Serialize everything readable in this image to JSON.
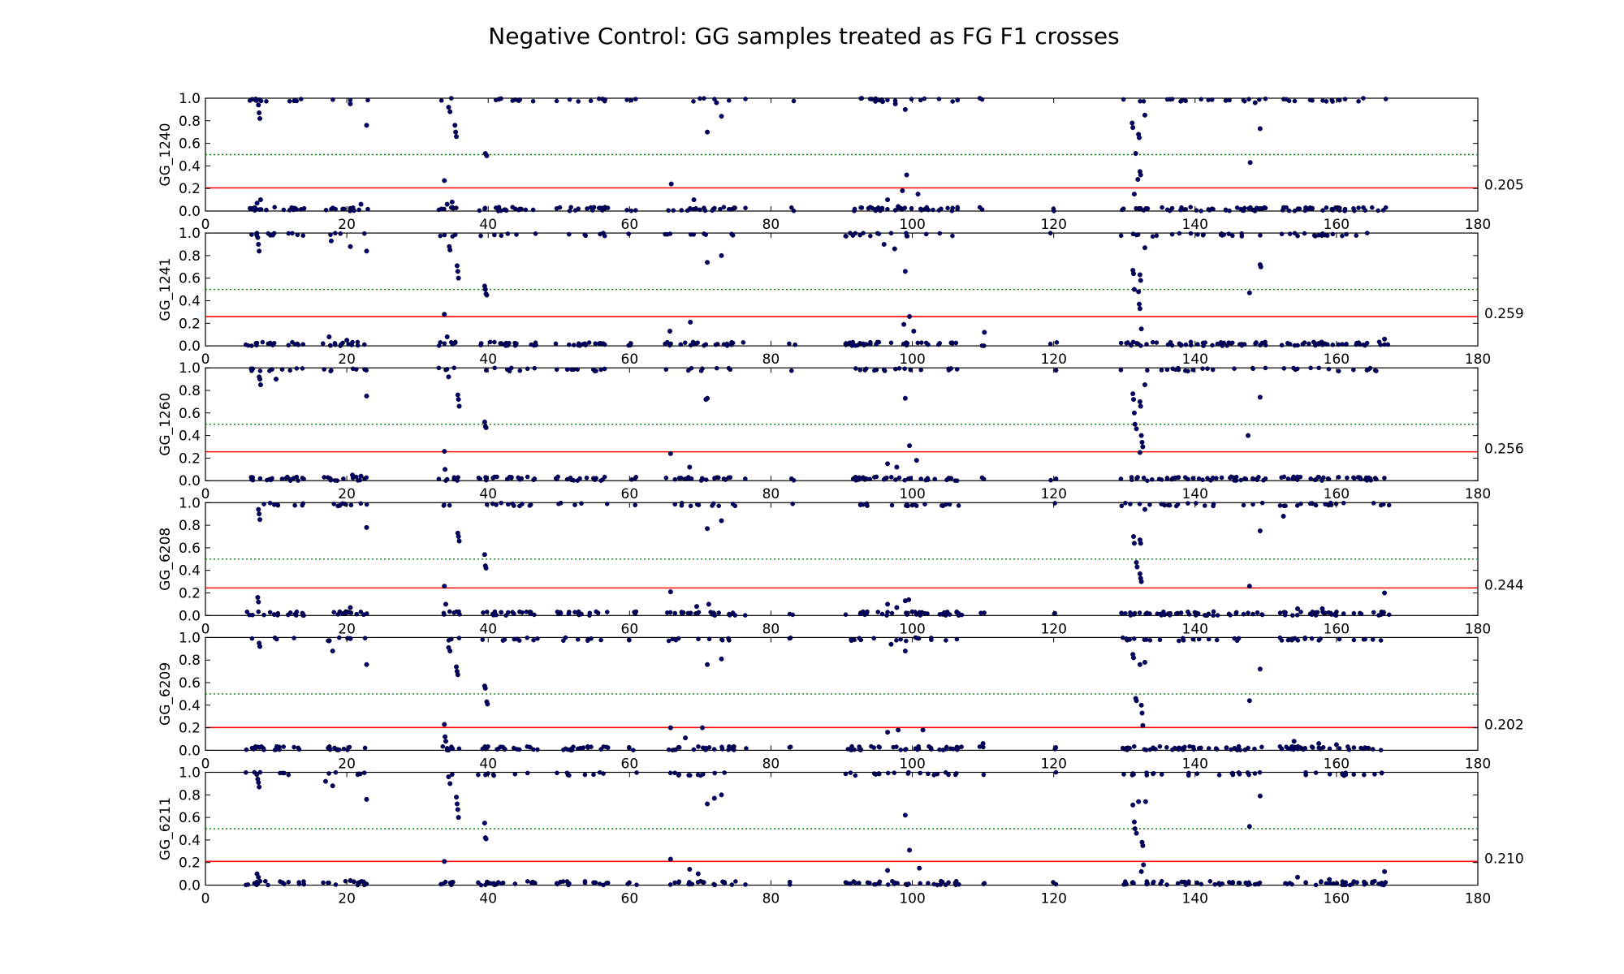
{
  "chart_data": {
    "type": "scatter",
    "title": "Negative Control: GG samples treated as FG F1 crosses",
    "xlim": [
      0,
      180
    ],
    "ylim": [
      0,
      1.0
    ],
    "xticks": [
      "0",
      "20",
      "40",
      "60",
      "80",
      "100",
      "120",
      "140",
      "160",
      "180"
    ],
    "yticks": [
      "0.0",
      "0.2",
      "0.4",
      "0.6",
      "0.8",
      "1.0"
    ],
    "reference_line": 0.5,
    "colors": {
      "points": "#000066",
      "threshold": "#ff0000",
      "reference": "#008000"
    },
    "panels": [
      {
        "ylabel": "GG_1240",
        "threshold": 0.205,
        "threshold_label": "0.205",
        "points": [
          [
            7.2,
            0.98
          ],
          [
            7.5,
            0.94
          ],
          [
            7.6,
            0.87
          ],
          [
            7.7,
            0.82
          ],
          [
            7.3,
            0.07
          ],
          [
            7.8,
            0.1
          ],
          [
            33.8,
            0.27
          ],
          [
            34.4,
            0.92
          ],
          [
            34.6,
            0.88
          ],
          [
            35.3,
            0.76
          ],
          [
            35.4,
            0.7
          ],
          [
            35.5,
            0.66
          ],
          [
            34.2,
            0.06
          ],
          [
            34.9,
            0.08
          ],
          [
            39.6,
            0.51
          ],
          [
            39.8,
            0.49
          ],
          [
            65.9,
            0.24
          ],
          [
            71.0,
            0.7
          ],
          [
            73.0,
            0.84
          ],
          [
            72.3,
            0.96
          ],
          [
            69.1,
            0.1
          ],
          [
            98.0,
            0.04
          ],
          [
            99.2,
            0.32
          ],
          [
            98.6,
            0.18
          ],
          [
            100.8,
            0.15
          ],
          [
            96.5,
            0.1
          ],
          [
            99.0,
            0.9
          ],
          [
            97.6,
            0.95
          ],
          [
            95.8,
            0.97
          ],
          [
            131.1,
            0.78
          ],
          [
            131.2,
            0.74
          ],
          [
            131.6,
            0.51
          ],
          [
            132.0,
            0.68
          ],
          [
            132.1,
            0.65
          ],
          [
            132.2,
            0.35
          ],
          [
            132.3,
            0.32
          ],
          [
            131.9,
            0.28
          ],
          [
            132.9,
            0.85
          ],
          [
            131.4,
            0.15
          ],
          [
            147.8,
            0.43
          ],
          [
            149.2,
            0.73
          ],
          [
            148.5,
            0.96
          ],
          [
            22.8,
            0.76
          ],
          [
            20.5,
            0.95
          ],
          [
            22.0,
            0.06
          ]
        ]
      },
      {
        "ylabel": "GG_1241",
        "threshold": 0.259,
        "threshold_label": "0.259",
        "points": [
          [
            7.4,
            0.96
          ],
          [
            7.5,
            0.9
          ],
          [
            7.6,
            0.84
          ],
          [
            17.8,
            0.93
          ],
          [
            20.5,
            0.88
          ],
          [
            22.8,
            0.84
          ],
          [
            33.8,
            0.28
          ],
          [
            34.5,
            0.88
          ],
          [
            34.6,
            0.85
          ],
          [
            35.6,
            0.71
          ],
          [
            35.7,
            0.66
          ],
          [
            35.8,
            0.6
          ],
          [
            34.2,
            0.08
          ],
          [
            39.5,
            0.53
          ],
          [
            39.6,
            0.5
          ],
          [
            39.7,
            0.46
          ],
          [
            39.8,
            0.45
          ],
          [
            65.7,
            0.13
          ],
          [
            68.6,
            0.21
          ],
          [
            71.0,
            0.74
          ],
          [
            73.0,
            0.8
          ],
          [
            99.0,
            0.66
          ],
          [
            99.6,
            0.26
          ],
          [
            98.8,
            0.19
          ],
          [
            100.2,
            0.13
          ],
          [
            96.0,
            0.9
          ],
          [
            97.5,
            0.86
          ],
          [
            110.2,
            0.12
          ],
          [
            131.2,
            0.67
          ],
          [
            131.3,
            0.64
          ],
          [
            131.4,
            0.5
          ],
          [
            132.2,
            0.63
          ],
          [
            132.3,
            0.58
          ],
          [
            132.0,
            0.48
          ],
          [
            132.1,
            0.37
          ],
          [
            132.2,
            0.33
          ],
          [
            132.4,
            0.15
          ],
          [
            132.9,
            0.87
          ],
          [
            147.7,
            0.47
          ],
          [
            149.2,
            0.72
          ],
          [
            149.3,
            0.7
          ],
          [
            166.8,
            0.06
          ],
          [
            17.5,
            0.08
          ],
          [
            20.0,
            0.05
          ]
        ]
      },
      {
        "ylabel": "GG_1260",
        "threshold": 0.256,
        "threshold_label": "0.256",
        "points": [
          [
            7.6,
            0.92
          ],
          [
            7.7,
            0.9
          ],
          [
            7.8,
            0.85
          ],
          [
            10.0,
            0.9
          ],
          [
            22.8,
            0.75
          ],
          [
            33.8,
            0.26
          ],
          [
            33.9,
            0.1
          ],
          [
            34.4,
            0.92
          ],
          [
            35.7,
            0.76
          ],
          [
            35.8,
            0.72
          ],
          [
            35.9,
            0.66
          ],
          [
            39.5,
            0.52
          ],
          [
            39.6,
            0.48
          ],
          [
            39.7,
            0.47
          ],
          [
            65.8,
            0.24
          ],
          [
            68.5,
            0.12
          ],
          [
            71.0,
            0.73
          ],
          [
            70.8,
            0.72
          ],
          [
            99.0,
            0.73
          ],
          [
            99.6,
            0.31
          ],
          [
            100.6,
            0.18
          ],
          [
            96.5,
            0.15
          ],
          [
            97.8,
            0.12
          ],
          [
            131.2,
            0.77
          ],
          [
            131.3,
            0.72
          ],
          [
            131.4,
            0.6
          ],
          [
            131.5,
            0.5
          ],
          [
            131.7,
            0.46
          ],
          [
            132.2,
            0.7
          ],
          [
            132.3,
            0.66
          ],
          [
            132.4,
            0.4
          ],
          [
            132.5,
            0.34
          ],
          [
            132.6,
            0.3
          ],
          [
            132.2,
            0.25
          ],
          [
            132.9,
            0.85
          ],
          [
            147.5,
            0.4
          ],
          [
            149.2,
            0.74
          ],
          [
            20.8,
            0.05
          ],
          [
            22.0,
            0.04
          ]
        ]
      },
      {
        "ylabel": "GG_6208",
        "threshold": 0.244,
        "threshold_label": "0.244",
        "points": [
          [
            7.5,
            0.94
          ],
          [
            7.6,
            0.9
          ],
          [
            7.7,
            0.85
          ],
          [
            7.4,
            0.16
          ],
          [
            7.5,
            0.12
          ],
          [
            22.8,
            0.78
          ],
          [
            33.8,
            0.26
          ],
          [
            34.0,
            0.1
          ],
          [
            35.7,
            0.73
          ],
          [
            35.8,
            0.7
          ],
          [
            35.9,
            0.66
          ],
          [
            39.5,
            0.54
          ],
          [
            39.6,
            0.44
          ],
          [
            39.7,
            0.42
          ],
          [
            65.8,
            0.21
          ],
          [
            71.0,
            0.77
          ],
          [
            73.0,
            0.84
          ],
          [
            69.5,
            0.08
          ],
          [
            71.2,
            0.1
          ],
          [
            96.5,
            0.1
          ],
          [
            99.0,
            0.13
          ],
          [
            99.5,
            0.14
          ],
          [
            97.8,
            0.07
          ],
          [
            131.3,
            0.7
          ],
          [
            131.4,
            0.64
          ],
          [
            132.2,
            0.67
          ],
          [
            132.3,
            0.64
          ],
          [
            131.7,
            0.47
          ],
          [
            131.8,
            0.43
          ],
          [
            132.2,
            0.37
          ],
          [
            132.3,
            0.33
          ],
          [
            132.4,
            0.3
          ],
          [
            132.9,
            0.94
          ],
          [
            147.7,
            0.26
          ],
          [
            149.2,
            0.75
          ],
          [
            152.5,
            0.88
          ],
          [
            166.8,
            0.2
          ],
          [
            20.5,
            0.07
          ],
          [
            154.5,
            0.06
          ],
          [
            158.0,
            0.06
          ]
        ]
      },
      {
        "ylabel": "GG_6209",
        "threshold": 0.202,
        "threshold_label": "0.202",
        "points": [
          [
            7.6,
            0.95
          ],
          [
            7.7,
            0.92
          ],
          [
            17.5,
            0.97
          ],
          [
            18.0,
            0.88
          ],
          [
            20.5,
            0.99
          ],
          [
            22.8,
            0.76
          ],
          [
            33.8,
            0.23
          ],
          [
            33.9,
            0.12
          ],
          [
            34.0,
            0.08
          ],
          [
            34.4,
            0.91
          ],
          [
            34.6,
            0.88
          ],
          [
            35.5,
            0.74
          ],
          [
            35.6,
            0.7
          ],
          [
            35.7,
            0.67
          ],
          [
            39.5,
            0.57
          ],
          [
            39.6,
            0.55
          ],
          [
            39.8,
            0.43
          ],
          [
            39.9,
            0.41
          ],
          [
            65.8,
            0.2
          ],
          [
            67.9,
            0.11
          ],
          [
            70.3,
            0.2
          ],
          [
            71.0,
            0.76
          ],
          [
            73.0,
            0.81
          ],
          [
            96.5,
            0.16
          ],
          [
            98.0,
            0.18
          ],
          [
            99.0,
            0.88
          ],
          [
            101.5,
            0.18
          ],
          [
            97.0,
            0.94
          ],
          [
            131.2,
            0.85
          ],
          [
            131.3,
            0.82
          ],
          [
            131.6,
            0.46
          ],
          [
            131.7,
            0.44
          ],
          [
            132.2,
            0.76
          ],
          [
            132.4,
            0.4
          ],
          [
            132.5,
            0.33
          ],
          [
            132.6,
            0.22
          ],
          [
            132.9,
            0.78
          ],
          [
            147.7,
            0.44
          ],
          [
            149.2,
            0.72
          ],
          [
            110.0,
            0.06
          ],
          [
            154.0,
            0.08
          ],
          [
            157.5,
            0.06
          ],
          [
            160.0,
            0.05
          ]
        ]
      },
      {
        "ylabel": "GG_6211",
        "threshold": 0.21,
        "threshold_label": "0.210",
        "points": [
          [
            7.4,
            0.94
          ],
          [
            7.5,
            0.91
          ],
          [
            7.6,
            0.87
          ],
          [
            7.3,
            0.1
          ],
          [
            7.5,
            0.07
          ],
          [
            17.0,
            0.92
          ],
          [
            18.0,
            0.88
          ],
          [
            22.8,
            0.76
          ],
          [
            33.8,
            0.21
          ],
          [
            34.4,
            0.96
          ],
          [
            34.6,
            0.9
          ],
          [
            35.5,
            0.78
          ],
          [
            35.6,
            0.72
          ],
          [
            35.7,
            0.67
          ],
          [
            35.8,
            0.6
          ],
          [
            39.5,
            0.55
          ],
          [
            39.6,
            0.42
          ],
          [
            39.7,
            0.41
          ],
          [
            65.8,
            0.23
          ],
          [
            68.5,
            0.14
          ],
          [
            71.0,
            0.72
          ],
          [
            72.0,
            0.77
          ],
          [
            73.0,
            0.8
          ],
          [
            69.7,
            0.1
          ],
          [
            99.0,
            0.62
          ],
          [
            99.6,
            0.31
          ],
          [
            96.5,
            0.13
          ],
          [
            101.0,
            0.15
          ],
          [
            131.2,
            0.71
          ],
          [
            131.4,
            0.56
          ],
          [
            131.5,
            0.5
          ],
          [
            131.7,
            0.46
          ],
          [
            132.0,
            0.74
          ],
          [
            132.5,
            0.38
          ],
          [
            132.6,
            0.35
          ],
          [
            132.7,
            0.18
          ],
          [
            132.4,
            0.12
          ],
          [
            133.0,
            0.74
          ],
          [
            147.7,
            0.52
          ],
          [
            149.2,
            0.79
          ],
          [
            166.8,
            0.12
          ],
          [
            20.5,
            0.04
          ],
          [
            21.0,
            0.03
          ],
          [
            154.5,
            0.07
          ],
          [
            159.0,
            0.05
          ]
        ]
      }
    ]
  }
}
